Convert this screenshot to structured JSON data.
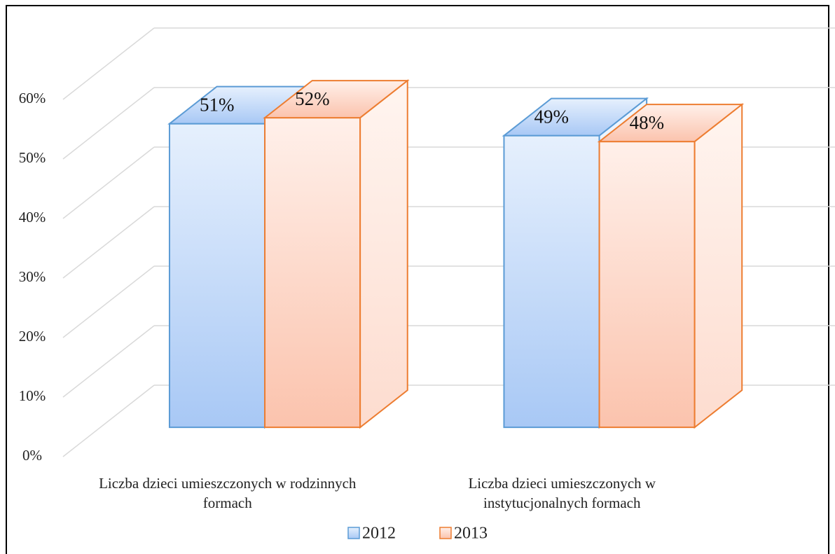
{
  "chart_data": {
    "type": "bar3d",
    "categories": [
      "Liczba dzieci umieszczonych w rodzinnych formach",
      "Liczba dzieci umieszczonych w instytucjonalnych formach"
    ],
    "series": [
      {
        "name": "2012",
        "color": "#5b9bd5",
        "values": [
          51,
          49
        ],
        "value_labels": [
          "51%",
          "49%"
        ]
      },
      {
        "name": "2013",
        "color": "#ed7d31",
        "values": [
          52,
          48
        ],
        "value_labels": [
          "52%",
          "48%"
        ]
      }
    ],
    "ylim": [
      0,
      60
    ],
    "yticks": [
      {
        "value": 0,
        "label": "0%"
      },
      {
        "value": 10,
        "label": "10%"
      },
      {
        "value": 20,
        "label": "20%"
      },
      {
        "value": 30,
        "label": "30%"
      },
      {
        "value": 40,
        "label": "40%"
      },
      {
        "value": 50,
        "label": "50%"
      },
      {
        "value": 60,
        "label": "60%"
      }
    ],
    "grid": true,
    "legend": "bottom"
  }
}
